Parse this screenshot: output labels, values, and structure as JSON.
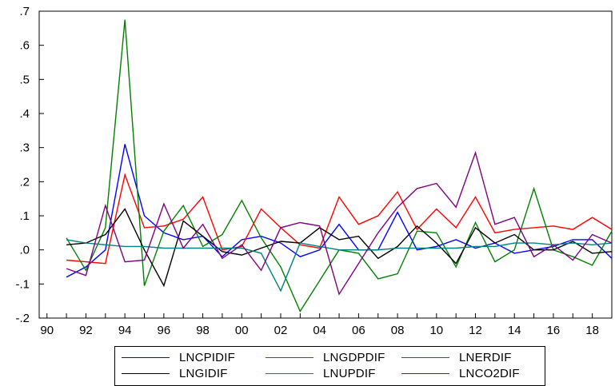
{
  "chart_data": {
    "type": "line",
    "x": [
      1991,
      1992,
      1993,
      1994,
      1995,
      1996,
      1997,
      1998,
      1999,
      2000,
      2001,
      2002,
      2003,
      2004,
      2005,
      2006,
      2007,
      2008,
      2009,
      2010,
      2011,
      2012,
      2013,
      2014,
      2015,
      2016,
      2017,
      2018,
      2019
    ],
    "xlim": [
      1989.6,
      2019
    ],
    "ylim": [
      -0.2,
      0.7
    ],
    "x_tick_values": [
      1990,
      1992,
      1994,
      1996,
      1998,
      2000,
      2002,
      2004,
      2006,
      2008,
      2010,
      2012,
      2014,
      2016,
      2018
    ],
    "x_tick_labels": [
      "90",
      "92",
      "94",
      "96",
      "98",
      "00",
      "02",
      "04",
      "06",
      "08",
      "10",
      "12",
      "14",
      "16",
      "18"
    ],
    "y_tick_values": [
      -0.2,
      -0.1,
      0.0,
      0.1,
      0.2,
      0.3,
      0.4,
      0.5,
      0.6,
      0.7
    ],
    "y_tick_labels": [
      "-.2",
      "-.1",
      ".0",
      ".1",
      ".2",
      ".3",
      ".4",
      ".5",
      ".6",
      ".7"
    ],
    "grid": false,
    "legend_position": "bottom",
    "series": [
      {
        "name": "LNCPIDIF",
        "color": "#0000ff",
        "values": [
          -0.08,
          -0.05,
          0.0,
          0.31,
          0.1,
          0.05,
          0.03,
          0.04,
          -0.02,
          0.03,
          0.04,
          0.02,
          -0.02,
          0.0,
          0.075,
          0.0,
          0.0,
          0.11,
          0.0,
          0.01,
          0.03,
          0.005,
          0.02,
          -0.01,
          0.0,
          0.01,
          0.03,
          0.03,
          -0.025
        ]
      },
      {
        "name": "LNGDPDIF",
        "color": "#ff0000",
        "values": [
          -0.03,
          -0.035,
          -0.04,
          0.22,
          0.065,
          0.07,
          0.09,
          0.155,
          0.0,
          0.01,
          0.12,
          0.065,
          0.015,
          0.005,
          0.155,
          0.075,
          0.1,
          0.17,
          0.06,
          0.12,
          0.065,
          0.155,
          0.05,
          0.06,
          0.065,
          0.07,
          0.06,
          0.095,
          0.06
        ]
      },
      {
        "name": "LNERDIF",
        "color": "#008000",
        "values": [
          0.035,
          -0.06,
          0.065,
          0.675,
          -0.105,
          0.055,
          0.13,
          0.01,
          0.045,
          0.145,
          0.035,
          -0.05,
          -0.18,
          -0.09,
          0.0,
          -0.01,
          -0.085,
          -0.07,
          0.055,
          0.05,
          -0.05,
          0.08,
          -0.035,
          0.0,
          0.18,
          0.0,
          -0.02,
          -0.045,
          0.055
        ]
      },
      {
        "name": "LNGIDIF",
        "color": "#000000",
        "values": [
          0.015,
          0.02,
          0.045,
          0.12,
          0.0,
          -0.105,
          0.085,
          0.04,
          -0.005,
          -0.015,
          0.005,
          0.025,
          0.02,
          0.065,
          0.03,
          0.04,
          -0.025,
          0.01,
          0.07,
          0.02,
          -0.04,
          0.065,
          0.02,
          0.045,
          0.0,
          0.0,
          0.025,
          -0.01,
          -0.005
        ]
      },
      {
        "name": "LNUPDIF",
        "color": "#008080",
        "values": [
          0.03,
          0.02,
          0.015,
          0.01,
          0.01,
          0.005,
          0.005,
          0.005,
          0.005,
          0.005,
          -0.01,
          -0.12,
          0.02,
          0.01,
          0.0,
          0.0,
          0.0,
          0.005,
          0.005,
          0.005,
          0.005,
          0.01,
          0.01,
          0.02,
          0.02,
          0.015,
          0.02,
          0.015,
          0.02
        ]
      },
      {
        "name": "LNCO2DIF",
        "color": "#800080",
        "values": [
          -0.055,
          -0.075,
          0.13,
          -0.035,
          -0.03,
          0.135,
          0.005,
          0.075,
          -0.025,
          0.015,
          -0.06,
          0.065,
          0.08,
          0.07,
          -0.13,
          -0.04,
          0.05,
          0.125,
          0.18,
          0.195,
          0.125,
          0.285,
          0.075,
          0.095,
          -0.02,
          0.015,
          -0.03,
          0.045,
          0.02
        ]
      }
    ]
  }
}
